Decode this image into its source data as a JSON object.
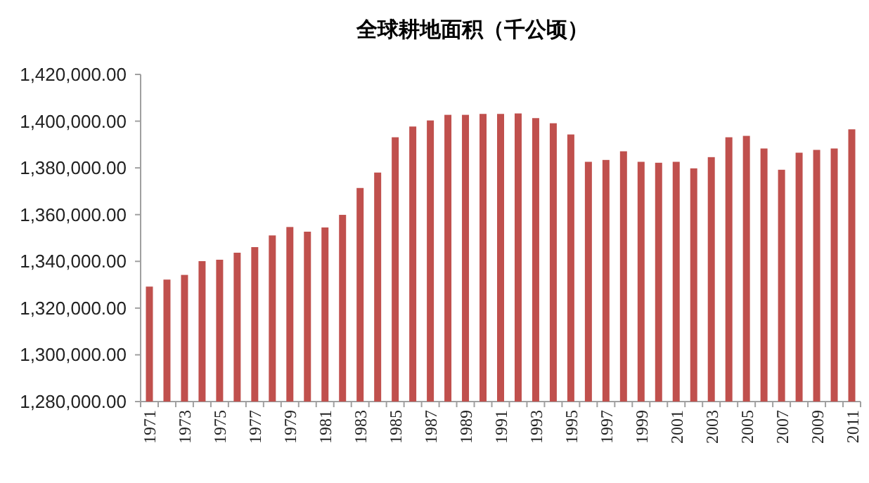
{
  "chart_data": {
    "type": "bar",
    "title": "全球耕地面积（千公顷）",
    "categories": [
      "1971",
      null,
      "1973",
      null,
      "1975",
      null,
      "1977",
      null,
      "1979",
      null,
      "1981",
      null,
      "1983",
      null,
      "1985",
      null,
      "1987",
      null,
      "1989",
      null,
      "1991",
      null,
      "1993",
      null,
      "1995",
      null,
      "1997",
      null,
      "1999",
      null,
      "2001",
      null,
      "2003",
      null,
      "2005",
      null,
      "2007",
      null,
      "2009",
      null,
      "2011"
    ],
    "values": [
      1329200,
      1332200,
      1334200,
      1340100,
      1340700,
      1343700,
      1346100,
      1351100,
      1354700,
      1352700,
      1354500,
      1359900,
      1371400,
      1378000,
      1393100,
      1397700,
      1400300,
      1402700,
      1402700,
      1403100,
      1403100,
      1403300,
      1401300,
      1399100,
      1394300,
      1382600,
      1383400,
      1387100,
      1382600,
      1382200,
      1382600,
      1379800,
      1384600,
      1393100,
      1393700,
      1388300,
      1379200,
      1386500,
      1387700,
      1388300,
      1396500
    ],
    "color": "#c0504d",
    "ylim": [
      1280000,
      1420000
    ],
    "yticks": [
      {
        "value": 1280000,
        "label": "1,280,000.00"
      },
      {
        "value": 1300000,
        "label": "1,300,000.00"
      },
      {
        "value": 1320000,
        "label": "1,320,000.00"
      },
      {
        "value": 1340000,
        "label": "1,340,000.00"
      },
      {
        "value": 1360000,
        "label": "1,360,000.00"
      },
      {
        "value": 1380000,
        "label": "1,380,000.00"
      },
      {
        "value": 1400000,
        "label": "1,400,000.00"
      },
      {
        "value": 1420000,
        "label": "1,420,000.00"
      }
    ]
  }
}
